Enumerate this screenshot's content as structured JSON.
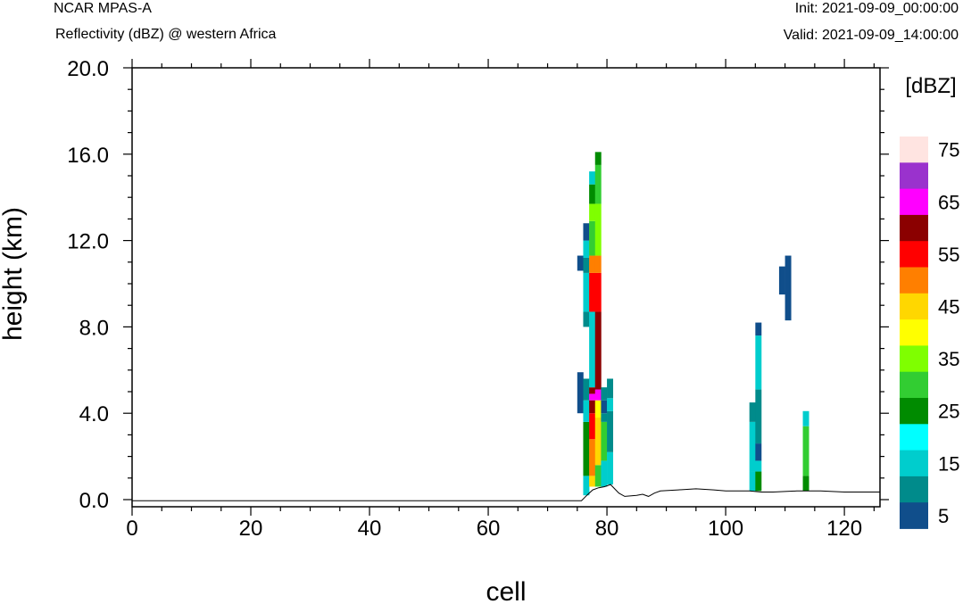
{
  "header": {
    "model": "NCAR MPAS-A",
    "subtitle": "Reflectivity (dBZ) @ western Africa",
    "init": "Init: 2021-09-09_00:00:00",
    "valid": "Valid: 2021-09-09_14:00:00"
  },
  "chart_data": {
    "type": "heatmap",
    "xlabel": "cell",
    "ylabel": "height (km)",
    "xlim": [
      0,
      126
    ],
    "ylim": [
      -0.3,
      20.0
    ],
    "x_ticks": [
      0,
      20,
      40,
      60,
      80,
      100,
      120
    ],
    "x_tick_labels": [
      "0",
      "20",
      "40",
      "60",
      "80",
      "100",
      "120"
    ],
    "y_ticks": [
      0,
      4,
      8,
      12,
      16,
      20
    ],
    "y_tick_labels": [
      "0.0",
      "4.0",
      "8.0",
      "12.0",
      "16.0",
      "20.0"
    ],
    "colorbar": {
      "title": "[dBZ]",
      "levels": [
        5,
        10,
        15,
        20,
        25,
        30,
        35,
        40,
        45,
        50,
        55,
        60,
        65,
        70,
        75
      ],
      "labels": [
        "5",
        "15",
        "25",
        "35",
        "45",
        "55",
        "65",
        "75"
      ],
      "colors": [
        "#104e8b",
        "#008b8b",
        "#00cdcd",
        "#00ffff",
        "#008b00",
        "#32cd32",
        "#7fff00",
        "#ffff00",
        "#ffd700",
        "#ff7f00",
        "#ff0000",
        "#8b0000",
        "#ff00ff",
        "#9a32cd",
        "#ffe4e1"
      ]
    },
    "columns": [
      {
        "x": 75.5,
        "segments": [
          [
            10.6,
            11.3,
            5
          ],
          [
            4.0,
            5.9,
            5
          ]
        ]
      },
      {
        "x": 76.5,
        "segments": [
          [
            0.2,
            1.1,
            15
          ],
          [
            1.1,
            3.6,
            25
          ],
          [
            3.6,
            4.6,
            15
          ],
          [
            4.6,
            5.6,
            10
          ],
          [
            8.0,
            8.7,
            10
          ],
          [
            8.7,
            10.5,
            15
          ],
          [
            10.5,
            11.2,
            10
          ],
          [
            11.2,
            12.0,
            15
          ],
          [
            12.0,
            12.8,
            5
          ]
        ]
      },
      {
        "x": 77.5,
        "segments": [
          [
            0.6,
            1.1,
            45
          ],
          [
            1.1,
            2.8,
            50
          ],
          [
            2.8,
            4.0,
            55
          ],
          [
            4.0,
            4.6,
            60
          ],
          [
            4.6,
            4.9,
            65
          ],
          [
            4.9,
            5.2,
            60
          ],
          [
            5.2,
            8.7,
            15
          ],
          [
            8.7,
            10.5,
            55
          ],
          [
            10.5,
            11.3,
            50
          ],
          [
            11.3,
            12.9,
            30
          ],
          [
            12.9,
            13.7,
            35
          ],
          [
            13.7,
            14.6,
            25
          ],
          [
            14.6,
            15.2,
            15
          ]
        ]
      },
      {
        "x": 78.5,
        "segments": [
          [
            0.6,
            1.6,
            30
          ],
          [
            1.6,
            3.8,
            45
          ],
          [
            3.8,
            4.6,
            40
          ],
          [
            4.6,
            5.1,
            65
          ],
          [
            5.1,
            8.7,
            60
          ],
          [
            8.7,
            10.5,
            55
          ],
          [
            10.5,
            11.3,
            50
          ],
          [
            11.3,
            13.7,
            35
          ],
          [
            13.7,
            15.5,
            30
          ],
          [
            15.5,
            16.1,
            25
          ]
        ]
      },
      {
        "x": 79.5,
        "segments": [
          [
            0.6,
            1.8,
            15
          ],
          [
            1.8,
            3.6,
            30
          ],
          [
            3.6,
            4.0,
            10
          ],
          [
            4.0,
            4.6,
            5
          ],
          [
            4.6,
            5.2,
            10
          ]
        ]
      },
      {
        "x": 80.5,
        "segments": [
          [
            0.7,
            2.2,
            15
          ],
          [
            2.2,
            4.1,
            10
          ],
          [
            4.1,
            4.7,
            15
          ],
          [
            4.7,
            5.6,
            10
          ]
        ]
      },
      {
        "x": 104.5,
        "segments": [
          [
            0.4,
            1.3,
            15
          ],
          [
            1.3,
            3.6,
            15
          ],
          [
            3.6,
            4.5,
            10
          ]
        ]
      },
      {
        "x": 105.5,
        "segments": [
          [
            0.4,
            1.3,
            25
          ],
          [
            1.3,
            1.8,
            15
          ],
          [
            1.8,
            2.6,
            5
          ],
          [
            2.6,
            5.1,
            10
          ],
          [
            5.1,
            7.6,
            15
          ],
          [
            7.6,
            8.2,
            5
          ]
        ]
      },
      {
        "x": 109.5,
        "segments": [
          [
            9.5,
            10.8,
            5
          ]
        ]
      },
      {
        "x": 110.5,
        "segments": [
          [
            8.3,
            11.3,
            5
          ]
        ]
      },
      {
        "x": 113.5,
        "segments": [
          [
            0.4,
            1.1,
            25
          ],
          [
            1.1,
            3.4,
            30
          ],
          [
            3.4,
            4.1,
            15
          ]
        ]
      }
    ],
    "terrain": [
      [
        0,
        -0.05
      ],
      [
        75.7,
        -0.05
      ],
      [
        76.6,
        0.2
      ],
      [
        77.6,
        0.45
      ],
      [
        78.6,
        0.55
      ],
      [
        79.6,
        0.6
      ],
      [
        80.6,
        0.7
      ],
      [
        82,
        0.3
      ],
      [
        83,
        0.15
      ],
      [
        85,
        0.2
      ],
      [
        86,
        0.25
      ],
      [
        87,
        0.15
      ],
      [
        88,
        0.3
      ],
      [
        89,
        0.4
      ],
      [
        92,
        0.45
      ],
      [
        95,
        0.5
      ],
      [
        98,
        0.45
      ],
      [
        100,
        0.4
      ],
      [
        104,
        0.4
      ],
      [
        106,
        0.35
      ],
      [
        108,
        0.35
      ],
      [
        112,
        0.4
      ],
      [
        116,
        0.4
      ],
      [
        120,
        0.35
      ],
      [
        126,
        0.35
      ]
    ]
  }
}
